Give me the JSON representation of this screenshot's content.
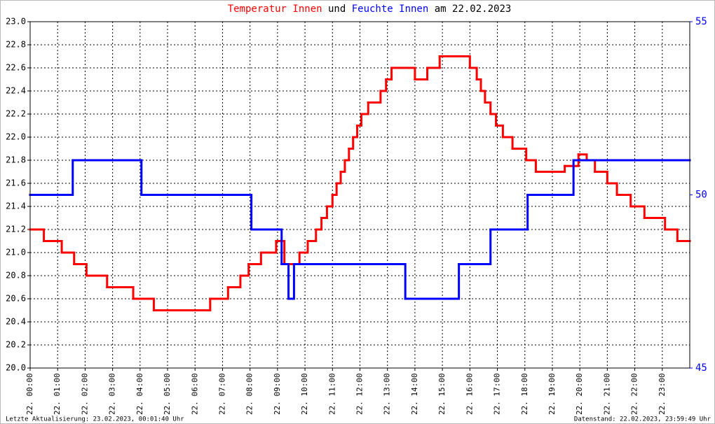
{
  "chart_data": {
    "type": "line",
    "step": true,
    "title_parts": [
      {
        "text": "Temperatur Innen",
        "color": "#ff0000"
      },
      {
        "text": "und",
        "color": "#000000"
      },
      {
        "text": "Feuchte Innen",
        "color": "#0000ff"
      },
      {
        "text": "am 22.02.2023",
        "color": "#000000"
      }
    ],
    "footer_left": "Letzte Aktualisierung: 23.02.2023, 00:01:40 Uhr",
    "footer_right": "Datenstand: 22.02.2023, 23:59:49 Uhr",
    "xlim": [
      0,
      24
    ],
    "xticks": [
      {
        "value": 0,
        "label": "22. 00:00"
      },
      {
        "value": 1,
        "label": "22. 01:00"
      },
      {
        "value": 2,
        "label": "22. 02:00"
      },
      {
        "value": 3,
        "label": "22. 03:00"
      },
      {
        "value": 4,
        "label": "22. 04:00"
      },
      {
        "value": 5,
        "label": "22. 05:00"
      },
      {
        "value": 6,
        "label": "22. 06:00"
      },
      {
        "value": 7,
        "label": "22. 07:00"
      },
      {
        "value": 8,
        "label": "22. 08:00"
      },
      {
        "value": 9,
        "label": "22. 09:00"
      },
      {
        "value": 10,
        "label": "22. 10:00"
      },
      {
        "value": 11,
        "label": "22. 11:00"
      },
      {
        "value": 12,
        "label": "22. 12:00"
      },
      {
        "value": 13,
        "label": "22. 13:00"
      },
      {
        "value": 14,
        "label": "22. 14:00"
      },
      {
        "value": 15,
        "label": "22. 15:00"
      },
      {
        "value": 16,
        "label": "22. 16:00"
      },
      {
        "value": 17,
        "label": "22. 17:00"
      },
      {
        "value": 18,
        "label": "22. 18:00"
      },
      {
        "value": 19,
        "label": "22. 19:00"
      },
      {
        "value": 20,
        "label": "22. 20:00"
      },
      {
        "value": 21,
        "label": "22. 21:00"
      },
      {
        "value": 22,
        "label": "22. 22:00"
      },
      {
        "value": 23,
        "label": "22. 23:00"
      }
    ],
    "ylim": [
      20,
      23
    ],
    "yticks": [
      {
        "value": 20,
        "label": "20.0"
      },
      20.2,
      20.4,
      20.6,
      20.8,
      {
        "value": 21,
        "label": "21.0"
      },
      21.2,
      21.4,
      21.6,
      21.8,
      {
        "value": 22,
        "label": "22.0"
      },
      22.2,
      22.4,
      22.6,
      22.8,
      {
        "value": 23,
        "label": "23.0"
      }
    ],
    "y2lim": [
      45,
      55
    ],
    "y2ticks": [
      45,
      50,
      55
    ],
    "y2color": "#0000ff",
    "grid": true,
    "series": [
      {
        "name": "Temperatur Innen",
        "color": "#ff0000",
        "x": [
          0,
          0.5,
          1.15,
          1.6,
          2.05,
          2.8,
          3.75,
          4.5,
          6.55,
          7.2,
          7.65,
          7.95,
          8.4,
          8.95,
          9.25,
          9.8,
          10.1,
          10.4,
          10.6,
          10.8,
          11.0,
          11.15,
          11.3,
          11.45,
          11.6,
          11.75,
          11.9,
          12.05,
          12.3,
          12.75,
          12.95,
          13.15,
          14.0,
          14.45,
          14.9,
          16.0,
          16.25,
          16.4,
          16.55,
          16.75,
          16.95,
          17.2,
          17.55,
          18.05,
          18.4,
          19.45,
          19.95,
          20.25,
          20.55,
          21.0,
          21.35,
          21.85,
          22.35,
          23.1,
          23.55,
          24
        ],
        "values": [
          21.2,
          21.1,
          21.0,
          20.9,
          20.8,
          20.7,
          20.6,
          20.5,
          20.6,
          20.7,
          20.8,
          20.9,
          21.0,
          21.1,
          20.9,
          21.0,
          21.1,
          21.2,
          21.3,
          21.4,
          21.5,
          21.6,
          21.7,
          21.8,
          21.9,
          22.0,
          22.1,
          22.2,
          22.3,
          22.4,
          22.5,
          22.6,
          22.5,
          22.6,
          22.7,
          22.6,
          22.5,
          22.4,
          22.3,
          22.2,
          22.1,
          22.0,
          21.9,
          21.8,
          21.7,
          21.75,
          21.85,
          21.8,
          21.7,
          21.6,
          21.5,
          21.4,
          21.3,
          21.2,
          21.1,
          21.1
        ]
      },
      {
        "name": "Feuchte Innen",
        "color": "#0000ff",
        "axis": "y2",
        "x": [
          0,
          1.55,
          4.05,
          8.05,
          9.15,
          9.4,
          9.6,
          13.65,
          15.6,
          16.75,
          18.1,
          19.77,
          24
        ],
        "values": [
          50,
          51,
          50,
          49,
          48,
          47,
          48,
          47,
          48,
          49,
          50,
          51,
          51
        ]
      }
    ]
  }
}
